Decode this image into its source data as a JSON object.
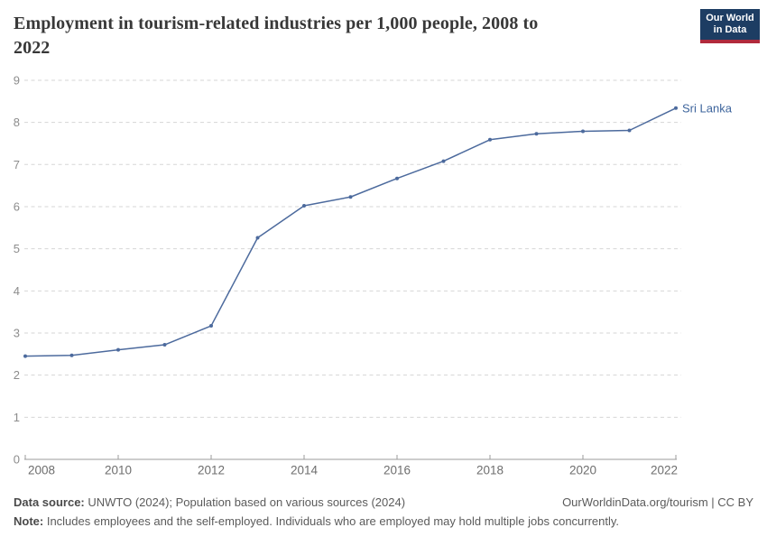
{
  "header": {
    "title": "Employment in tourism-related industries per 1,000 people, 2008 to 2022",
    "title_lines": [
      "Employment in tourism-related industries per 1,000 people, 2008 to",
      "2022"
    ]
  },
  "logo": {
    "line1": "Our World",
    "line2": "in Data",
    "bg_color": "#1d3d63",
    "accent_color": "#b12a3c"
  },
  "chart_data": {
    "type": "line",
    "title": "Employment in tourism-related industries per 1,000 people, 2008 to 2022",
    "x": [
      2008,
      2009,
      2010,
      2011,
      2012,
      2013,
      2014,
      2015,
      2016,
      2017,
      2018,
      2019,
      2020,
      2021,
      2022
    ],
    "series": [
      {
        "name": "Sri Lanka",
        "values": [
          2.45,
          2.47,
          2.6,
          2.72,
          3.17,
          5.26,
          6.02,
          6.23,
          6.67,
          7.08,
          7.59,
          7.73,
          7.79,
          7.81,
          8.34
        ]
      }
    ],
    "xlabel": "",
    "ylabel": "",
    "ylim": [
      0,
      9
    ],
    "yticks": [
      0,
      1,
      2,
      3,
      4,
      5,
      6,
      7,
      8,
      9
    ],
    "xticks": [
      2008,
      2010,
      2012,
      2014,
      2016,
      2018,
      2020,
      2022
    ],
    "grid": "horizontal-dashed",
    "legend_position": "end-of-line-label",
    "end_label": "Sri Lanka",
    "line_color": "#4c6a9d",
    "end_label_color": "#3d649c",
    "gridline_color": "#d6d6d6",
    "axis_color": "#9b9b9b",
    "ytick_label_color": "#8c8c8c",
    "xtick_label_color": "#6e6e6e"
  },
  "footer": {
    "source_label": "Data source:",
    "source_text": " UNWTO (2024); Population based on various sources (2024)",
    "note_label": "Note:",
    "note_text": " Includes employees and the self-employed. Individuals who are employed may hold multiple jobs concurrently.",
    "rights": "OurWorldinData.org/tourism | CC BY"
  }
}
